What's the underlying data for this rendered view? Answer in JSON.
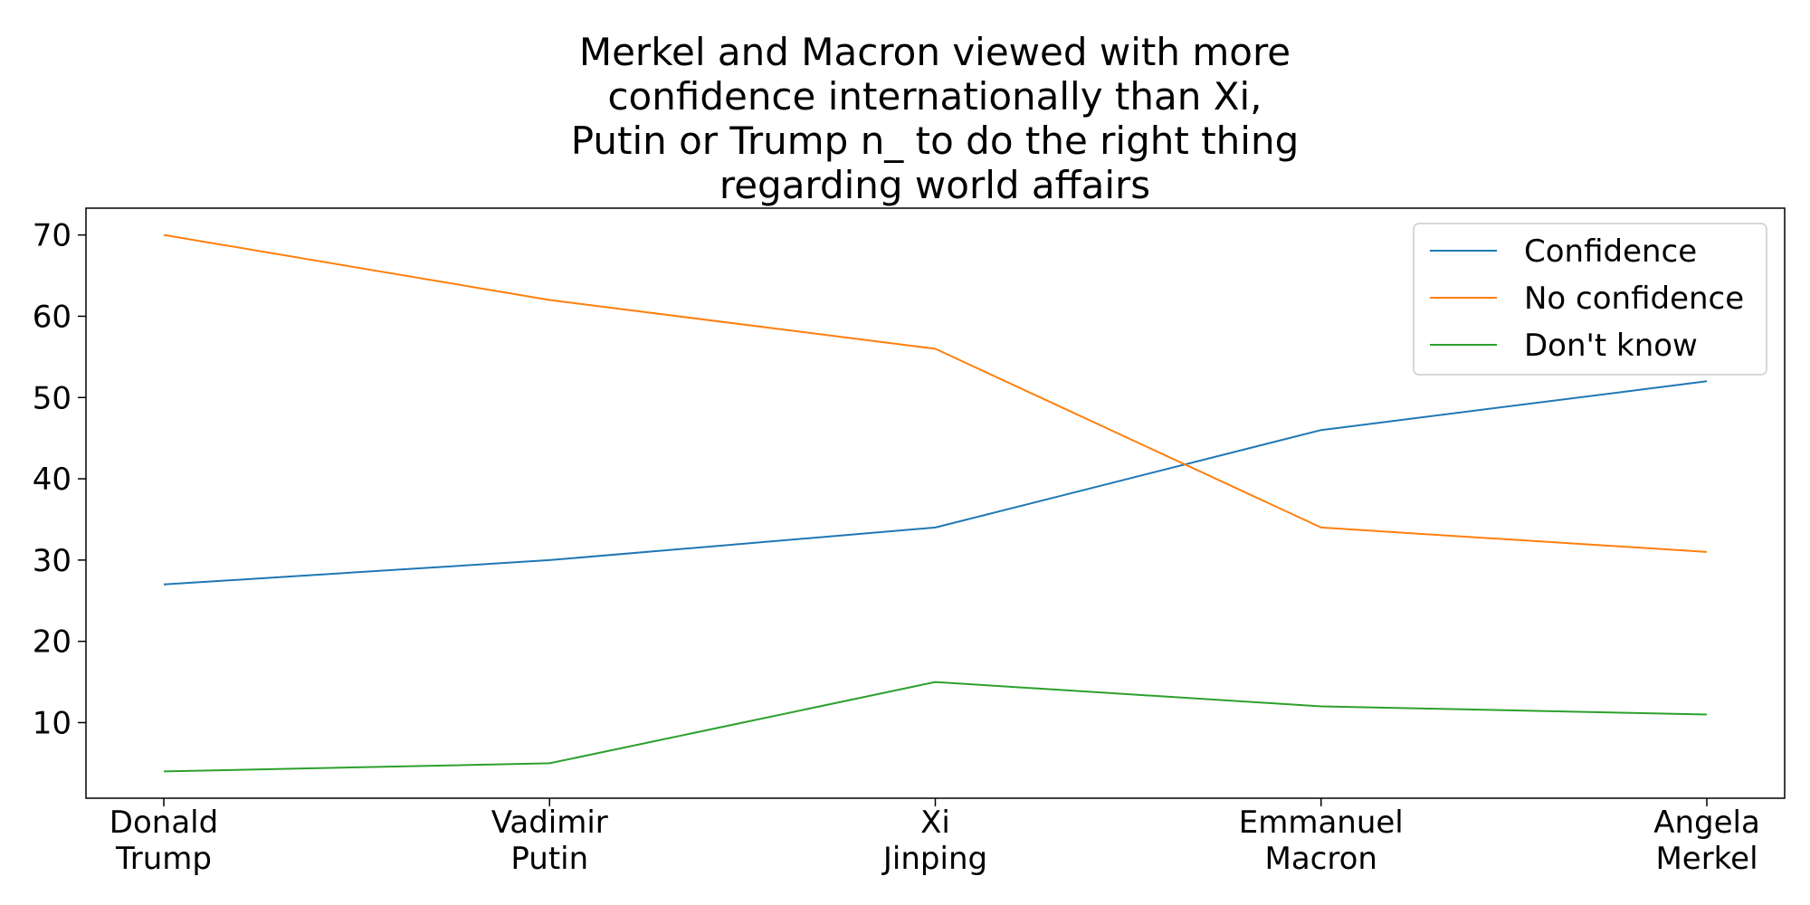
{
  "chart_data": {
    "type": "line",
    "title_lines": [
      "Merkel and Macron viewed with more",
      "confidence internationally than Xi,",
      "Putin or Trump n_ to do the right thing",
      "regarding world affairs"
    ],
    "categories": [
      [
        "Donald",
        "Trump"
      ],
      [
        "Vadimir",
        "Putin"
      ],
      [
        "Xi",
        "Jinping"
      ],
      [
        "Emmanuel",
        "Macron"
      ],
      [
        "Angela",
        "Merkel"
      ]
    ],
    "series": [
      {
        "name": "Confidence",
        "color": "#1f77b4",
        "values": [
          27,
          30,
          34,
          46,
          52
        ]
      },
      {
        "name": "No confidence",
        "color": "#ff7f0e",
        "values": [
          70,
          62,
          56,
          34,
          31
        ]
      },
      {
        "name": "Don't know",
        "color": "#2ca02c",
        "values": [
          4,
          5,
          15,
          12,
          11
        ]
      }
    ],
    "ylim": [
      0.7,
      73.3
    ],
    "yticks": [
      "10",
      "20",
      "30",
      "40",
      "50",
      "60",
      "70"
    ],
    "legend_position": "top-right",
    "grid": false
  }
}
